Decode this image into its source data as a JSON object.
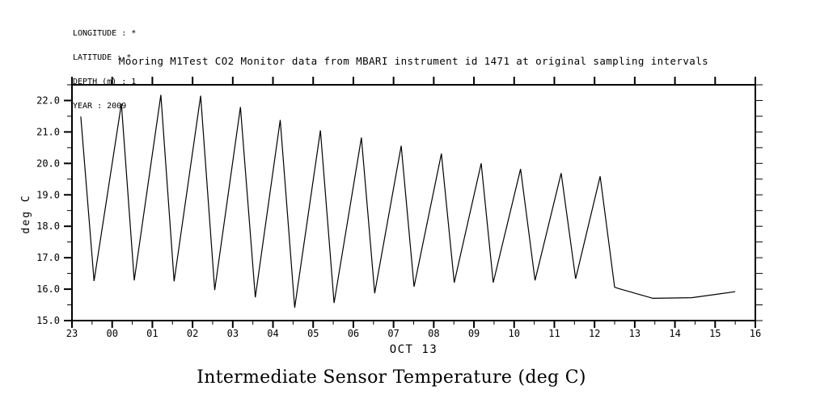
{
  "meta": {
    "lines": [
      "LONGITUDE : *",
      "LATITUDE : *",
      "DEPTH (m) : 1",
      "YEAR : 2009"
    ]
  },
  "chart": {
    "title": "Mooring M1Test CO2 Monitor data from MBARI instrument id 1471 at original sampling intervals",
    "xlabel": "OCT 13",
    "ylabel": "deg C"
  },
  "footer": {
    "title": "Intermediate Sensor Temperature (deg C)"
  },
  "chart_data": {
    "type": "line",
    "title": "Mooring M1Test CO2 Monitor data from MBARI instrument id 1471 at original sampling intervals",
    "xlabel": "OCT 13",
    "ylabel": "deg C",
    "line_color": "#000000",
    "background": "#ffffff",
    "grid": false,
    "legend": "none",
    "x_unit": "hours after 23:00 (previous day), axis labeled in clock hours",
    "x_range_hours": [
      0,
      17
    ],
    "x_tick_labels": [
      "23",
      "00",
      "01",
      "02",
      "03",
      "04",
      "05",
      "06",
      "07",
      "08",
      "09",
      "10",
      "11",
      "12",
      "13",
      "14",
      "15",
      "16"
    ],
    "x_major_step_hours": 1,
    "x_minor_step_hours": 0.5,
    "ylim": [
      15.0,
      22.5
    ],
    "y_major_step": 1.0,
    "y_minor_step": 0.5,
    "y_tick_label_format": "one-decimal",
    "points": [
      [
        0.22,
        21.49
      ],
      [
        0.55,
        16.26
      ],
      [
        1.23,
        21.9
      ],
      [
        1.55,
        16.28
      ],
      [
        2.21,
        22.18
      ],
      [
        2.54,
        16.25
      ],
      [
        3.2,
        22.15
      ],
      [
        3.55,
        15.97
      ],
      [
        4.19,
        21.79
      ],
      [
        4.56,
        15.74
      ],
      [
        5.18,
        21.38
      ],
      [
        5.54,
        15.41
      ],
      [
        6.18,
        21.05
      ],
      [
        6.52,
        15.56
      ],
      [
        7.2,
        20.82
      ],
      [
        7.53,
        15.87
      ],
      [
        8.19,
        20.56
      ],
      [
        8.51,
        16.08
      ],
      [
        9.19,
        20.31
      ],
      [
        9.51,
        16.21
      ],
      [
        10.18,
        20.0
      ],
      [
        10.48,
        16.21
      ],
      [
        11.16,
        19.82
      ],
      [
        11.52,
        16.28
      ],
      [
        12.17,
        19.69
      ],
      [
        12.53,
        16.33
      ],
      [
        13.14,
        19.59
      ],
      [
        13.5,
        16.06
      ],
      [
        13.6,
        16.02
      ],
      [
        14.45,
        15.71
      ],
      [
        14.95,
        15.72
      ],
      [
        15.42,
        15.73
      ],
      [
        16.5,
        15.92
      ]
    ]
  }
}
